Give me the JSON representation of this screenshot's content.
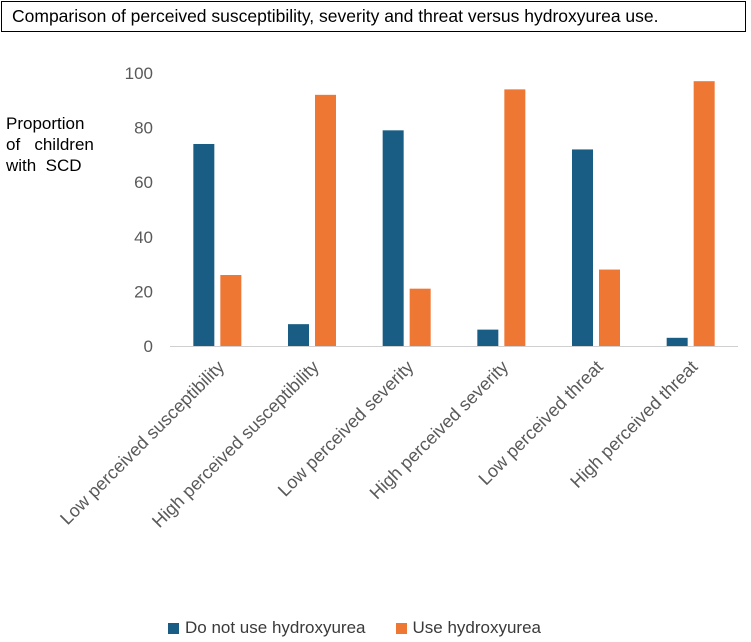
{
  "chart_data": {
    "type": "bar",
    "title": "Comparison of perceived susceptibility, severity and threat versus hydroxyurea use.",
    "ylabel_lines": [
      "Proportion",
      "of   children",
      "with  SCD"
    ],
    "xlabel": "",
    "categories": [
      "Low perceived susceptibility",
      "High perceived susceptibility",
      "Low perceived severity",
      "High perceived severity",
      "Low perceived threat",
      "High perceived threat"
    ],
    "series": [
      {
        "name": "Do not use hydroxyurea",
        "color": "#1a5d84",
        "values": [
          74,
          8,
          79,
          6,
          72,
          3
        ]
      },
      {
        "name": "Use hydroxyurea",
        "color": "#ee7733",
        "values": [
          26,
          92,
          21,
          94,
          28,
          97
        ]
      }
    ],
    "ylim": [
      0,
      100
    ],
    "yticks": [
      0,
      20,
      40,
      60,
      80,
      100
    ],
    "grid": false,
    "legend_position": "bottom"
  }
}
